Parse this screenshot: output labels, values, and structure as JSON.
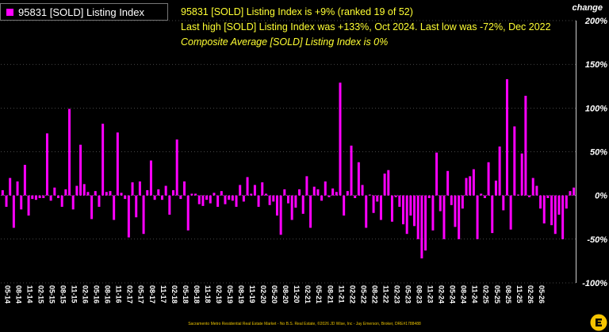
{
  "legend": {
    "label": "95831 [SOLD] Listing Index",
    "swatch_color": "#ff00ff"
  },
  "info": {
    "line1": "95831 [SOLD] Listing Index is +9% (ranked 19 of 52)",
    "line2": "Last high [SOLD] Listing Index was +133%, Oct 2024. Last low was -72%, Dec 2022",
    "line3": "Composite Average [SOLD] Listing Index is 0%",
    "color": "#ffff33"
  },
  "change_label": "change",
  "footer": "Sacramento Metro Residential Real Estate Market - No B.S. Real Estate, ©2026 JD Wise, Inc - Jay Emerson, Broker, DRE#1788488",
  "chart_data": {
    "type": "bar",
    "series": [
      {
        "name": "95831 [SOLD] Listing Index",
        "color": "#ff00ff",
        "values": [
          6,
          -13,
          20,
          -37,
          16,
          -16,
          35,
          -23,
          -4,
          -5,
          -3,
          -3,
          71,
          -6,
          9,
          -3,
          -13,
          7,
          99,
          -16,
          11,
          58,
          13,
          4,
          -27,
          5,
          -13,
          82,
          4,
          5,
          -28,
          72,
          3,
          -4,
          -48,
          15,
          -25,
          16,
          -44,
          6,
          40,
          -5,
          7,
          -5,
          11,
          -22,
          6,
          64,
          -4,
          16,
          -40,
          2,
          2,
          -10,
          -12,
          -5,
          -9,
          3,
          -13,
          5,
          -10,
          -5,
          -6,
          -13,
          12,
          -7,
          21,
          2,
          12,
          -13,
          15,
          2,
          -11,
          -7,
          -23,
          -45,
          7,
          -9,
          -28,
          -14,
          7,
          -21,
          22,
          -37,
          10,
          7,
          -6,
          16,
          -2,
          8,
          4,
          129,
          -23,
          5,
          57,
          -3,
          38,
          12,
          -37,
          1,
          -20,
          -7,
          -28,
          25,
          29,
          -30,
          -2,
          -13,
          -33,
          -44,
          -23,
          -35,
          -50,
          -72,
          -63,
          -3,
          -40,
          49,
          -18,
          -50,
          28,
          -11,
          -36,
          -50,
          -15,
          20,
          22,
          30,
          -50,
          2,
          -3,
          38,
          -43,
          17,
          56,
          -17,
          133,
          -39,
          79,
          1,
          48,
          114,
          -2,
          20,
          11,
          -15,
          -32,
          -3,
          -34,
          -44,
          -22,
          -50,
          -15,
          5,
          9
        ]
      }
    ],
    "x_tick_labels": [
      "05-14",
      "08-14",
      "11-14",
      "02-15",
      "05-15",
      "08-15",
      "11-15",
      "02-16",
      "05-16",
      "08-16",
      "11-16",
      "02-17",
      "05-17",
      "08-17",
      "11-17",
      "02-18",
      "05-18",
      "08-18",
      "11-18",
      "02-19",
      "05-19",
      "08-19",
      "11-19",
      "02-20",
      "05-20",
      "08-20",
      "11-20",
      "02-21",
      "05-21",
      "08-21",
      "11-21",
      "02-22",
      "05-22",
      "08-22",
      "11-22",
      "02-23",
      "05-23",
      "08-23",
      "11-23",
      "02-24",
      "05-24",
      "08-24",
      "11-24",
      "02-25",
      "05-25",
      "08-25",
      "11-25",
      "02-26",
      "05-26"
    ],
    "tick_every": 3,
    "y_tick_labels": [
      "200%",
      "150%",
      "100%",
      "50%",
      "0%",
      "-50%",
      "-100%"
    ],
    "ylim": [
      -100,
      200
    ],
    "y_ticks": [
      200,
      150,
      100,
      50,
      0,
      -50,
      -100
    ],
    "grid": true,
    "grid_color": "#ffffff",
    "axis_color": "#cccccc",
    "legend_position": "top-left"
  }
}
